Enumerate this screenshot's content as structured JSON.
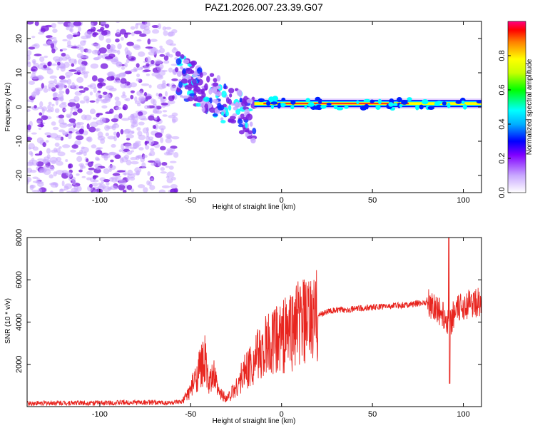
{
  "title": "PAZ1.2026.007.23.39.G07",
  "colors": {
    "snr_line": "#e8251f",
    "point_main": "#7a1fe0",
    "point_faint": "#c9a8ff",
    "bg": "#ffffff"
  },
  "chart_data": [
    {
      "type": "heatmap",
      "name": "spectrogram",
      "xlabel": "Height of straight line (km)",
      "ylabel": "Frequency (Hz)",
      "xlim": [
        -140,
        110
      ],
      "ylim": [
        -25,
        25
      ],
      "xticks": [
        -100,
        -50,
        0,
        50,
        100
      ],
      "yticks": [
        -20,
        -10,
        0,
        10,
        20
      ],
      "xtick_labels": [
        "-100",
        "-50",
        "0",
        "50",
        "100"
      ],
      "ytick_labels": [
        "-20",
        "-10",
        "0",
        "10",
        "20"
      ],
      "colorbar": {
        "label": "Normalized spectral amplitude",
        "range": [
          0,
          1
        ],
        "ticks": [
          0,
          0.2,
          0.4,
          0.6,
          0.8
        ],
        "tick_labels": [
          "0.0",
          "0.2",
          "0.4",
          "0.6",
          "0.8"
        ]
      },
      "features": [
        {
          "description": "scattered low-amplitude noise",
          "x_range": [
            -140,
            -58
          ],
          "freq_range": [
            -25,
            25
          ],
          "amplitude": 0.15
        },
        {
          "description": "tilted transition blobs",
          "x_range": [
            -58,
            -15
          ],
          "freq_range": [
            -8,
            14
          ],
          "amplitude": 0.3
        },
        {
          "description": "strong stable tone",
          "x_range": [
            -15,
            110
          ],
          "frequency": 1,
          "amplitude": 0.95
        }
      ]
    },
    {
      "type": "line",
      "name": "snr",
      "xlabel": "Height of straight line (km)",
      "ylabel": "SNR (10 * v/v)",
      "xlim": [
        -140,
        110
      ],
      "ylim": [
        0,
        8000
      ],
      "xticks": [
        -100,
        -50,
        0,
        50,
        100
      ],
      "yticks": [
        2000,
        4000,
        6000,
        8000
      ],
      "xtick_labels": [
        "-100",
        "-50",
        "0",
        "50",
        "100"
      ],
      "ytick_labels": [
        "2000",
        "4000",
        "6000",
        "8000"
      ],
      "series": [
        {
          "name": "SNR",
          "x": [
            -140,
            -120,
            -100,
            -80,
            -60,
            -55,
            -50,
            -45,
            -42,
            -40,
            -37,
            -35,
            -30,
            -25,
            -20,
            -15,
            -10,
            -5,
            0,
            5,
            10,
            15,
            20,
            25,
            30,
            40,
            50,
            60,
            70,
            75,
            80,
            85,
            90,
            92,
            95,
            100,
            105,
            110
          ],
          "y": [
            150,
            180,
            170,
            200,
            180,
            200,
            800,
            1800,
            2200,
            1000,
            1500,
            700,
            400,
            900,
            1700,
            2200,
            2700,
            3000,
            3300,
            3600,
            4000,
            3900,
            4300,
            4500,
            4550,
            4620,
            4700,
            4760,
            4830,
            4880,
            4950,
            4700,
            4200,
            3900,
            4400,
            4800,
            4900,
            4950
          ]
        }
      ]
    }
  ]
}
